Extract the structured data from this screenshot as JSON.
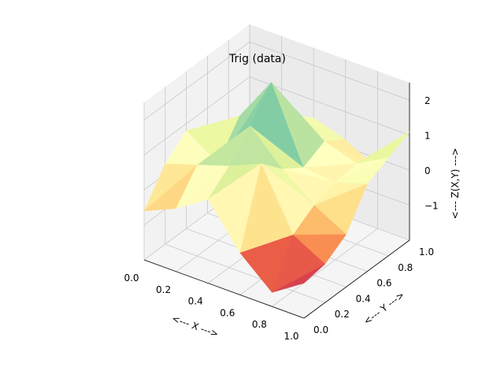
{
  "chart_data": {
    "type": "surface",
    "title": "Trig (data)",
    "xlabel": "<--- X --->",
    "ylabel": "<--- Y --->",
    "zlabel": "<--- Z(X,Y) --->",
    "xlim": [
      0.0,
      1.0
    ],
    "ylim": [
      0.0,
      1.0
    ],
    "zlim": [
      -2.0,
      2.5
    ],
    "xticks": [
      "0.0",
      "0.2",
      "0.4",
      "0.6",
      "0.8",
      "1.0"
    ],
    "yticks": [
      "0.0",
      "0.2",
      "0.4",
      "0.6",
      "0.8",
      "1.0"
    ],
    "zticks": [
      "−1",
      "0",
      "1",
      "2"
    ],
    "colormap": "Spectral",
    "grid": true,
    "surface": {
      "x": [
        [
          0.0,
          0.2,
          0.4,
          0.6,
          0.8,
          1.0
        ],
        [
          0.0,
          0.2,
          0.4,
          0.6,
          0.8,
          1.0
        ],
        [
          0.0,
          0.2,
          0.4,
          0.6,
          0.8,
          1.0
        ],
        [
          0.0,
          0.2,
          0.4,
          0.6,
          0.8,
          1.0
        ],
        [
          0.0,
          0.2,
          0.4,
          0.6,
          0.8,
          1.0
        ],
        [
          0.0,
          0.2,
          0.4,
          0.6,
          0.8,
          1.0
        ]
      ],
      "y": [
        [
          0.0,
          0.0,
          0.0,
          0.0,
          0.0,
          0.0
        ],
        [
          0.2,
          0.2,
          0.2,
          0.2,
          0.2,
          0.2
        ],
        [
          0.4,
          0.4,
          0.4,
          0.4,
          0.4,
          0.4
        ],
        [
          0.6,
          0.6,
          0.6,
          0.6,
          0.6,
          0.6
        ],
        [
          0.8,
          0.8,
          0.8,
          0.8,
          0.8,
          0.8
        ],
        [
          1.0,
          1.0,
          1.0,
          1.0,
          1.0,
          1.0
        ]
      ],
      "z": [
        [
          -0.6,
          -0.2,
          0.4,
          -0.8,
          -1.6,
          -1.0
        ],
        [
          0.3,
          0.6,
          0.9,
          1.3,
          -0.4,
          -0.9
        ],
        [
          0.8,
          0.2,
          1.6,
          0.7,
          0.0,
          -0.5
        ],
        [
          0.5,
          1.1,
          2.4,
          0.3,
          0.2,
          0.5
        ],
        [
          0.0,
          0.7,
          1.0,
          0.6,
          0.3,
          0.8
        ],
        [
          0.1,
          0.2,
          0.5,
          0.2,
          -0.3,
          1.1
        ]
      ]
    }
  }
}
